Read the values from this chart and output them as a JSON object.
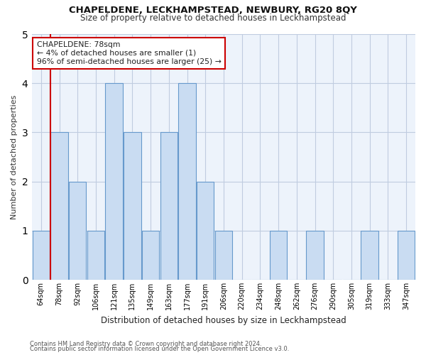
{
  "title1": "CHAPELDENE, LECKHAMPSTEAD, NEWBURY, RG20 8QY",
  "title2": "Size of property relative to detached houses in Leckhampstead",
  "xlabel": "Distribution of detached houses by size in Leckhampstead",
  "ylabel": "Number of detached properties",
  "categories": [
    "64sqm",
    "78sqm",
    "92sqm",
    "106sqm",
    "121sqm",
    "135sqm",
    "149sqm",
    "163sqm",
    "177sqm",
    "191sqm",
    "206sqm",
    "220sqm",
    "234sqm",
    "248sqm",
    "262sqm",
    "276sqm",
    "290sqm",
    "305sqm",
    "319sqm",
    "333sqm",
    "347sqm"
  ],
  "values": [
    1,
    3,
    2,
    1,
    4,
    3,
    1,
    3,
    4,
    2,
    1,
    0,
    0,
    1,
    0,
    1,
    0,
    0,
    1,
    0,
    1
  ],
  "bar_color": "#c9dcf2",
  "bar_edge_color": "#6699cc",
  "highlight_index": 1,
  "highlight_line_color": "#cc0000",
  "ylim": [
    0,
    5
  ],
  "yticks": [
    0,
    1,
    2,
    3,
    4,
    5
  ],
  "annotation_title": "CHAPELDENE: 78sqm",
  "annotation_line1": "← 4% of detached houses are smaller (1)",
  "annotation_line2": "96% of semi-detached houses are larger (25) →",
  "annotation_box_color": "#ffffff",
  "annotation_box_edge": "#cc0000",
  "footer1": "Contains HM Land Registry data © Crown copyright and database right 2024.",
  "footer2": "Contains public sector information licensed under the Open Government Licence v3.0.",
  "bg_color": "#edf3fb",
  "grid_color": "#c0cce0"
}
